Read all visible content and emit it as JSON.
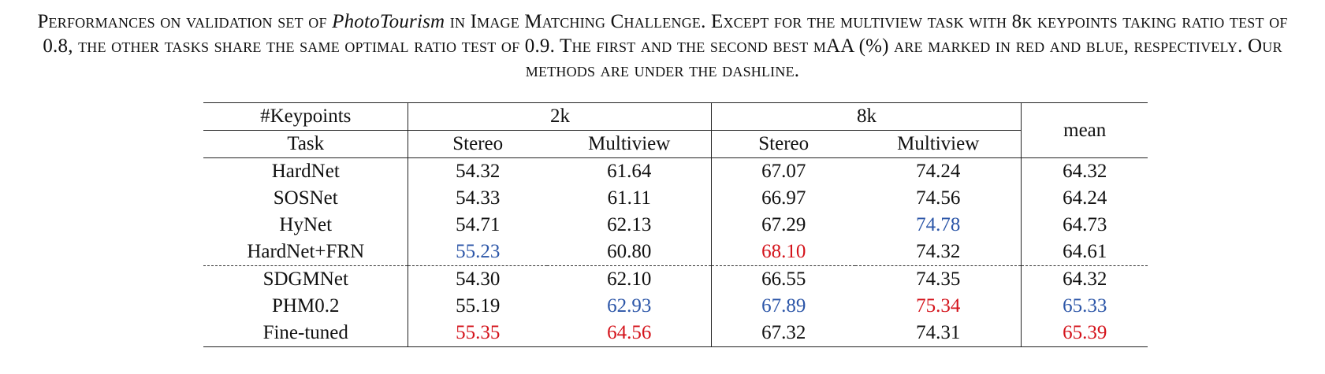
{
  "caption": {
    "text_part1": "Performances on validation set of ",
    "dataset": "PhotoTourism",
    "text_part2": " in Image Matching Challenge. Except for the multiview task with 8k keypoints taking ratio test of 0.8, the other tasks share the same optimal ratio test of 0.9. The first and the second best mAA (%) are marked in red and blue, respectively. Our methods are under the dashline."
  },
  "table": {
    "header": {
      "keypoints_label": "#Keypoints",
      "task_label": "Task",
      "group_2k": "2k",
      "group_8k": "8k",
      "stereo": "Stereo",
      "multiview": "Multiview",
      "mean": "mean"
    },
    "rows": [
      {
        "method": "HardNet",
        "s2k": "54.32",
        "m2k": "61.64",
        "s8k": "67.07",
        "m8k": "74.24",
        "mean": "64.32"
      },
      {
        "method": "SOSNet",
        "s2k": "54.33",
        "m2k": "61.11",
        "s8k": "66.97",
        "m8k": "74.56",
        "mean": "64.24"
      },
      {
        "method": "HyNet",
        "s2k": "54.71",
        "m2k": "62.13",
        "s8k": "67.29",
        "m8k": "74.78",
        "mean": "64.73"
      },
      {
        "method": "HardNet+FRN",
        "s2k": "55.23",
        "m2k": "60.80",
        "s8k": "68.10",
        "m8k": "74.32",
        "mean": "64.61"
      },
      {
        "method": "SDGMNet",
        "s2k": "54.30",
        "m2k": "62.10",
        "s8k": "66.55",
        "m8k": "74.35",
        "mean": "64.32"
      },
      {
        "method": "PHM0.2",
        "s2k": "55.19",
        "m2k": "62.93",
        "s8k": "67.89",
        "m8k": "75.34",
        "mean": "65.33"
      },
      {
        "method": "Fine-tuned",
        "s2k": "55.35",
        "m2k": "64.56",
        "s8k": "67.32",
        "m8k": "74.31",
        "mean": "65.39"
      }
    ],
    "colors": {
      "first_best": "#d4131b",
      "second_best": "#2c56a8"
    }
  }
}
